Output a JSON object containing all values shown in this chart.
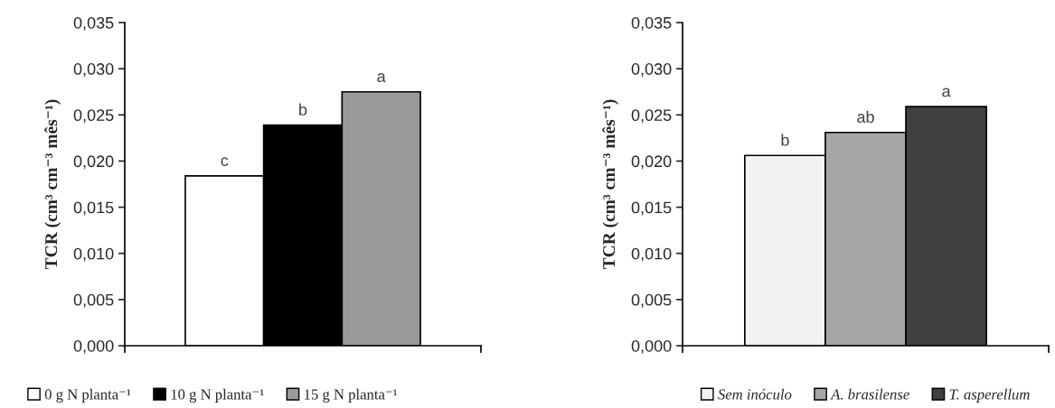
{
  "chart_data": [
    {
      "type": "bar",
      "ylabel": "TCR (cm³ cm⁻³ mês⁻¹)",
      "categories": [
        null
      ],
      "series": [
        {
          "name": "0 g N planta⁻¹",
          "color": "#ffffff",
          "values": [
            0.0184
          ]
        },
        {
          "name": "10 g N planta⁻¹",
          "color": "#000000",
          "values": [
            0.0239
          ]
        },
        {
          "name": "15 g N planta⁻¹",
          "color": "#9a9a9a",
          "values": [
            0.0275
          ]
        }
      ],
      "ylim": [
        0,
        0.035
      ],
      "yticks": [
        {
          "value": 0,
          "label": "0,000"
        },
        {
          "value": 0.005,
          "label": "0,005"
        },
        {
          "value": 0.01,
          "label": "0,010"
        },
        {
          "value": 0.015,
          "label": "0,015"
        },
        {
          "value": 0.02,
          "label": "0,020"
        },
        {
          "value": 0.025,
          "label": "0,025"
        },
        {
          "value": 0.03,
          "label": "0,030"
        },
        {
          "value": 0.035,
          "label": "0,035"
        }
      ],
      "annotations": [
        "c",
        "b",
        "a"
      ],
      "grid": false,
      "legend": "bottom"
    },
    {
      "type": "bar",
      "ylabel": "TCR (cm³ cm⁻³ mês⁻¹)",
      "categories": [
        null
      ],
      "series": [
        {
          "name": "Sem inóculo",
          "color": "#f2f2f2",
          "values": [
            0.0206
          ]
        },
        {
          "name": "A. brasilense",
          "color": "#a6a6a6",
          "values": [
            0.0231
          ]
        },
        {
          "name": "T. asperellum",
          "color": "#404040",
          "values": [
            0.0259
          ]
        }
      ],
      "ylim": [
        0,
        0.035
      ],
      "yticks": [
        {
          "value": 0,
          "label": "0,000"
        },
        {
          "value": 0.005,
          "label": "0,005"
        },
        {
          "value": 0.01,
          "label": "0,010"
        },
        {
          "value": 0.015,
          "label": "0,015"
        },
        {
          "value": 0.02,
          "label": "0,020"
        },
        {
          "value": 0.025,
          "label": "0,025"
        },
        {
          "value": 0.03,
          "label": "0,030"
        },
        {
          "value": 0.035,
          "label": "0,035"
        }
      ],
      "annotations": [
        "b",
        "ab",
        "a"
      ],
      "grid": false,
      "legend": "bottom"
    }
  ]
}
